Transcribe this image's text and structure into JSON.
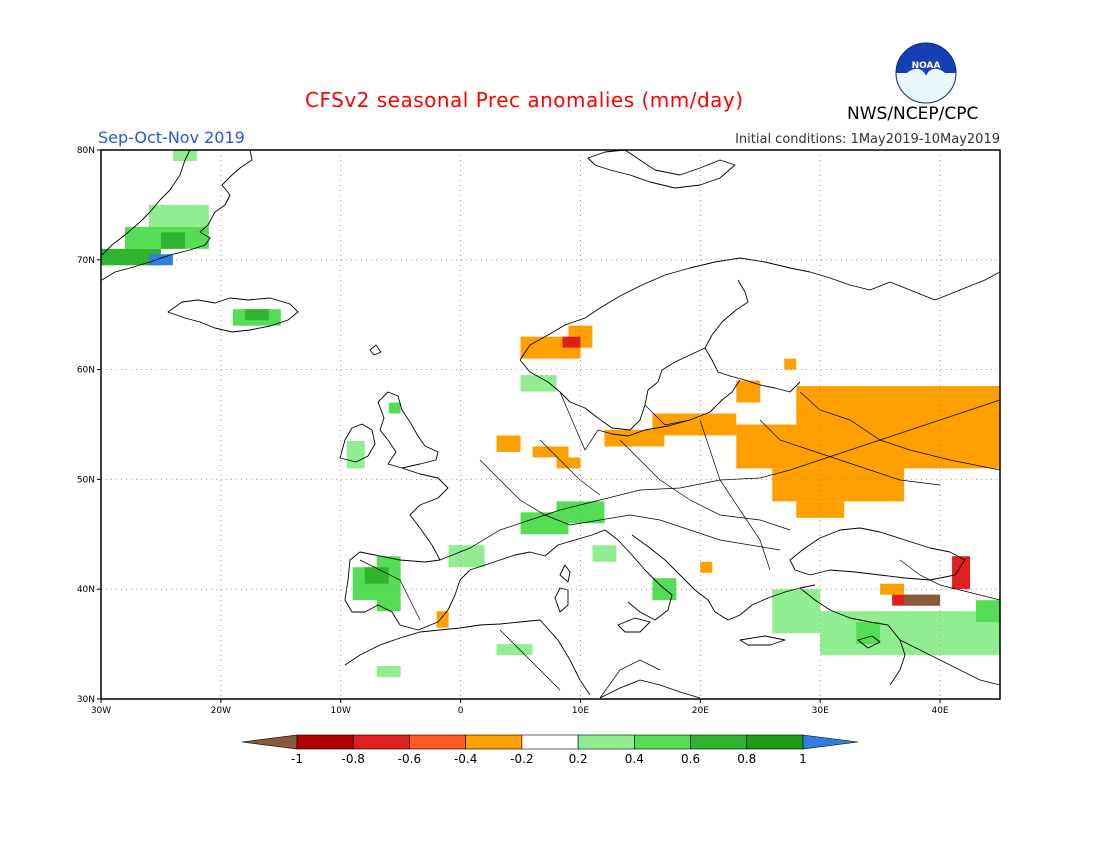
{
  "header": {
    "title": "CFSv2 seasonal Prec anomalies (mm/day)",
    "season": "Sep-Oct-Nov 2019",
    "initial_conditions": "Initial conditions: 1May2019-10May2019",
    "agency": "NWS/NCEP/CPC",
    "logo_text": "NOAA"
  },
  "map": {
    "lon_range": [
      -30,
      45
    ],
    "lat_range": [
      30,
      80
    ],
    "lon_ticks": [
      {
        "value": -30,
        "label": "30W"
      },
      {
        "value": -20,
        "label": "20W"
      },
      {
        "value": -10,
        "label": "10W"
      },
      {
        "value": 0,
        "label": "0"
      },
      {
        "value": 10,
        "label": "10E"
      },
      {
        "value": 20,
        "label": "20E"
      },
      {
        "value": 30,
        "label": "30E"
      },
      {
        "value": 40,
        "label": "40E"
      }
    ],
    "lat_ticks": [
      {
        "value": 80,
        "label": "80N"
      },
      {
        "value": 70,
        "label": "70N"
      },
      {
        "value": 60,
        "label": "60N"
      },
      {
        "value": 50,
        "label": "50N"
      },
      {
        "value": 40,
        "label": "40N"
      },
      {
        "value": 30,
        "label": "30N"
      }
    ],
    "grid": "dotted",
    "anomaly_cells": [
      {
        "lon0": -24,
        "lon1": -22,
        "lat0": 79,
        "lat1": 80,
        "value": 0.3
      },
      {
        "lon0": -26,
        "lon1": -21,
        "lat0": 73,
        "lat1": 75,
        "value": 0.3
      },
      {
        "lon0": -28,
        "lon1": -21,
        "lat0": 71,
        "lat1": 73,
        "value": 0.5
      },
      {
        "lon0": -25,
        "lon1": -23,
        "lat0": 71,
        "lat1": 72.5,
        "value": 0.7
      },
      {
        "lon0": -30,
        "lon1": -25,
        "lat0": 69.5,
        "lat1": 71,
        "value": 0.7
      },
      {
        "lon0": -26,
        "lon1": -24,
        "lat0": 69.5,
        "lat1": 70.5,
        "value": 1.1
      },
      {
        "lon0": -19,
        "lon1": -15,
        "lat0": 64,
        "lat1": 65.5,
        "value": 0.5
      },
      {
        "lon0": -18,
        "lon1": -16,
        "lat0": 64.5,
        "lat1": 65.5,
        "value": 0.7
      },
      {
        "lon0": -9.5,
        "lon1": -8,
        "lat0": 51,
        "lat1": 53.5,
        "value": 0.3
      },
      {
        "lon0": -6,
        "lon1": -5,
        "lat0": 56,
        "lat1": 57,
        "value": 0.5
      },
      {
        "lon0": 5,
        "lon1": 8,
        "lat0": 58,
        "lat1": 59.5,
        "value": 0.3
      },
      {
        "lon0": 5,
        "lon1": 10,
        "lat0": 61,
        "lat1": 63,
        "value": -0.3
      },
      {
        "lon0": 9,
        "lon1": 11,
        "lat0": 62,
        "lat1": 64,
        "value": -0.3
      },
      {
        "lon0": 8.5,
        "lon1": 10,
        "lat0": 62,
        "lat1": 63,
        "value": -0.7
      },
      {
        "lon0": 3,
        "lon1": 5,
        "lat0": 52.5,
        "lat1": 54,
        "value": -0.3
      },
      {
        "lon0": 6,
        "lon1": 9,
        "lat0": 52,
        "lat1": 53,
        "value": -0.3
      },
      {
        "lon0": 12,
        "lon1": 17,
        "lat0": 53,
        "lat1": 54.5,
        "value": -0.3
      },
      {
        "lon0": 16,
        "lon1": 23,
        "lat0": 54,
        "lat1": 56,
        "value": -0.3
      },
      {
        "lon0": 23,
        "lon1": 25,
        "lat0": 57,
        "lat1": 59,
        "value": -0.3
      },
      {
        "lon0": 27,
        "lon1": 28,
        "lat0": 60,
        "lat1": 61,
        "value": -0.3
      },
      {
        "lon0": 28,
        "lon1": 45,
        "lat0": 55,
        "lat1": 58.5,
        "value": -0.3
      },
      {
        "lon0": 23,
        "lon1": 45,
        "lat0": 51,
        "lat1": 55,
        "value": -0.3
      },
      {
        "lon0": 26,
        "lon1": 37,
        "lat0": 48,
        "lat1": 51,
        "value": -0.3
      },
      {
        "lon0": 28,
        "lon1": 32,
        "lat0": 46.5,
        "lat1": 48,
        "value": -0.3
      },
      {
        "lon0": 8,
        "lon1": 10,
        "lat0": 51,
        "lat1": 52,
        "value": -0.3
      },
      {
        "lon0": -7,
        "lon1": -5,
        "lat0": 38,
        "lat1": 43,
        "value": 0.5
      },
      {
        "lon0": -9,
        "lon1": -6,
        "lat0": 39,
        "lat1": 42,
        "value": 0.5
      },
      {
        "lon0": -8,
        "lon1": -6,
        "lat0": 40.5,
        "lat1": 42,
        "value": 0.7
      },
      {
        "lon0": -1,
        "lon1": 2,
        "lat0": 42,
        "lat1": 44,
        "value": 0.3
      },
      {
        "lon0": 5,
        "lon1": 9,
        "lat0": 45,
        "lat1": 47,
        "value": 0.5
      },
      {
        "lon0": 8,
        "lon1": 12,
        "lat0": 46,
        "lat1": 48,
        "value": 0.5
      },
      {
        "lon0": 11,
        "lon1": 13,
        "lat0": 42.5,
        "lat1": 44,
        "value": 0.3
      },
      {
        "lon0": 3,
        "lon1": 6,
        "lat0": 34,
        "lat1": 35,
        "value": 0.3
      },
      {
        "lon0": -7,
        "lon1": -5,
        "lat0": 32,
        "lat1": 33,
        "value": 0.3
      },
      {
        "lon0": 16,
        "lon1": 18,
        "lat0": 39,
        "lat1": 41,
        "value": 0.5
      },
      {
        "lon0": 26,
        "lon1": 30,
        "lat0": 36,
        "lat1": 40,
        "value": 0.3
      },
      {
        "lon0": 30,
        "lon1": 45,
        "lat0": 34,
        "lat1": 38,
        "value": 0.3
      },
      {
        "lon0": 33,
        "lon1": 35,
        "lat0": 35,
        "lat1": 37,
        "value": 0.5
      },
      {
        "lon0": 43,
        "lon1": 45,
        "lat0": 37,
        "lat1": 39,
        "value": 0.5
      },
      {
        "lon0": 35,
        "lon1": 37,
        "lat0": 39.5,
        "lat1": 40.5,
        "value": -0.3
      },
      {
        "lon0": 36,
        "lon1": 40,
        "lat0": 38.5,
        "lat1": 39.5,
        "value": -0.7
      },
      {
        "lon0": 37,
        "lon1": 40,
        "lat0": 38.5,
        "lat1": 39.5,
        "value": -1.1
      },
      {
        "lon0": 41,
        "lon1": 42.5,
        "lat0": 40,
        "lat1": 43,
        "value": -0.7
      },
      {
        "lon0": -2,
        "lon1": -1,
        "lat0": 36.5,
        "lat1": 38,
        "value": -0.3
      },
      {
        "lon0": 20,
        "lon1": 21,
        "lat0": 41.5,
        "lat1": 42.5,
        "value": -0.3
      }
    ]
  },
  "colorbar": {
    "labels": [
      "-1",
      "-0.8",
      "-0.6",
      "-0.4",
      "-0.2",
      "0.2",
      "0.4",
      "0.6",
      "0.8",
      "1"
    ],
    "bins": [
      {
        "max": -1,
        "color": "#8b5a3c"
      },
      {
        "max": -0.8,
        "color": "#b00000"
      },
      {
        "max": -0.6,
        "color": "#e02020"
      },
      {
        "max": -0.4,
        "color": "#ff5a1f"
      },
      {
        "max": -0.2,
        "color": "#ffa000"
      },
      {
        "max": 0.2,
        "color": "#ffffff"
      },
      {
        "max": 0.4,
        "color": "#90ee90"
      },
      {
        "max": 0.6,
        "color": "#55dd55"
      },
      {
        "max": 0.8,
        "color": "#2fb42f"
      },
      {
        "max": 1,
        "color": "#1a9e1a"
      },
      {
        "max": 999,
        "color": "#2f7fe0"
      }
    ]
  }
}
